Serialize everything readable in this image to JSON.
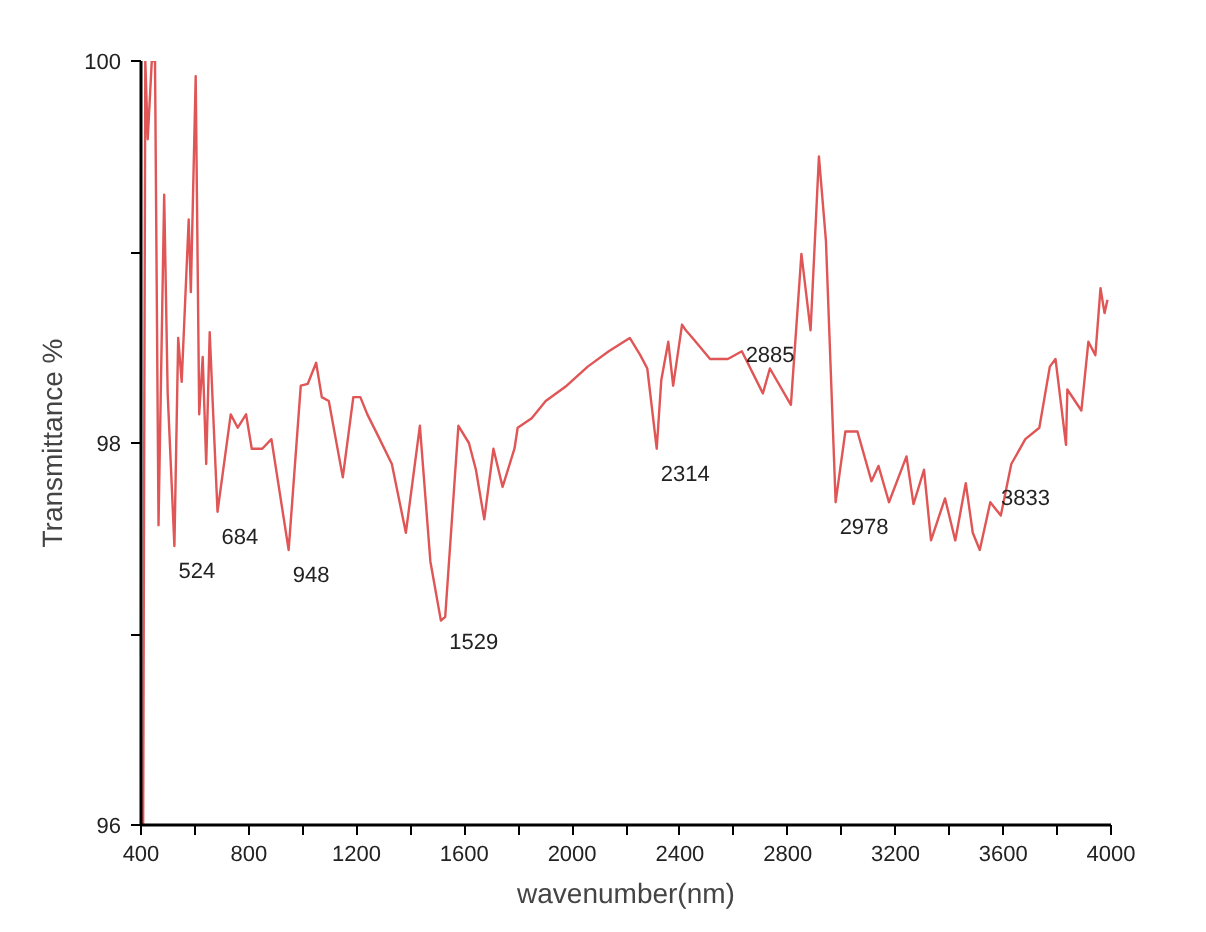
{
  "chart_data": {
    "type": "line",
    "xlabel": "wavenumber(nm)",
    "ylabel": "Transmittance %",
    "xlim": [
      400,
      4000
    ],
    "ylim": [
      96,
      100
    ],
    "xticks": [
      400,
      {
        "value": 600,
        "label": null
      },
      800,
      {
        "value": 1000,
        "label": null
      },
      1200,
      {
        "value": 1400,
        "label": null
      },
      1600,
      {
        "value": 1800,
        "label": null
      },
      2000,
      {
        "value": 2200,
        "label": null
      },
      2400,
      {
        "value": 2600,
        "label": null
      },
      2800,
      {
        "value": 3000,
        "label": null
      },
      3200,
      {
        "value": 3400,
        "label": null
      },
      3600,
      {
        "value": 3800,
        "label": null
      },
      4000
    ],
    "yticks": [
      96,
      {
        "value": 97,
        "label": null
      },
      98,
      {
        "value": 99,
        "label": null
      },
      100
    ],
    "grid": false,
    "marker": "none",
    "line_style": "solid",
    "series": [
      {
        "color": "#e05555",
        "x": [
          408,
          416,
          425,
          440,
          452,
          465,
          486,
          499,
          524,
          538,
          551,
          577,
          585,
          603,
          616,
          629,
          642,
          655,
          668,
          684,
          733,
          759,
          790,
          811,
          850,
          884,
          948,
          993,
          1019,
          1050,
          1071,
          1097,
          1149,
          1188,
          1214,
          1240,
          1279,
          1331,
          1383,
          1435,
          1474,
          1513,
          1529,
          1578,
          1617,
          1643,
          1674,
          1708,
          1742,
          1786,
          1798,
          1850,
          1902,
          1980,
          2058,
          2136,
          2214,
          2253,
          2279,
          2314,
          2331,
          2357,
          2375,
          2408,
          2422,
          2447,
          2512,
          2578,
          2630,
          2708,
          2734,
          2812,
          2851,
          2885,
          2916,
          2942,
          2978,
          3014,
          3059,
          3111,
          3137,
          3176,
          3241,
          3267,
          3306,
          3332,
          3384,
          3422,
          3461,
          3487,
          3513,
          3552,
          3591,
          3630,
          3682,
          3734,
          3773,
          3794,
          3833,
          3838,
          3890,
          3916,
          3942,
          3961,
          3976,
          3987
        ],
        "values": [
          96.0,
          100.0,
          99.59,
          100.0,
          100.0,
          97.57,
          99.3,
          98.26,
          97.46,
          98.55,
          98.32,
          99.17,
          98.79,
          99.92,
          98.15,
          98.45,
          97.89,
          98.58,
          98.15,
          97.64,
          98.15,
          98.08,
          98.15,
          97.97,
          97.97,
          98.02,
          97.44,
          98.3,
          98.31,
          98.42,
          98.24,
          98.22,
          97.82,
          98.24,
          98.24,
          98.15,
          98.04,
          97.89,
          97.53,
          98.09,
          97.38,
          97.07,
          97.09,
          98.09,
          98.0,
          97.86,
          97.6,
          97.97,
          97.77,
          97.97,
          98.08,
          98.13,
          98.22,
          98.3,
          98.4,
          98.48,
          98.55,
          98.46,
          98.39,
          97.97,
          98.33,
          98.53,
          98.3,
          98.62,
          98.59,
          98.55,
          98.44,
          98.44,
          98.48,
          98.26,
          98.39,
          98.2,
          98.99,
          98.59,
          99.5,
          99.06,
          97.69,
          98.06,
          98.06,
          97.8,
          97.88,
          97.69,
          97.93,
          97.68,
          97.86,
          97.49,
          97.71,
          97.49,
          97.79,
          97.53,
          97.44,
          97.69,
          97.62,
          97.89,
          98.02,
          98.08,
          98.4,
          98.44,
          97.99,
          98.28,
          98.17,
          98.53,
          98.46,
          98.81,
          98.68,
          98.75
        ]
      }
    ],
    "annotations": [
      {
        "text": "524",
        "x": 524,
        "y": 97.46
      },
      {
        "text": "684",
        "x": 684,
        "y": 97.64
      },
      {
        "text": "948",
        "x": 948,
        "y": 97.44
      },
      {
        "text": "1529",
        "x": 1529,
        "y": 97.09
      },
      {
        "text": "2314",
        "x": 2314,
        "y": 97.97
      },
      {
        "text": "2885",
        "x": 2885,
        "y": 98.59
      },
      {
        "text": "2978",
        "x": 2978,
        "y": 97.69
      },
      {
        "text": "3833",
        "x": 3833,
        "y": 97.99
      }
    ]
  }
}
